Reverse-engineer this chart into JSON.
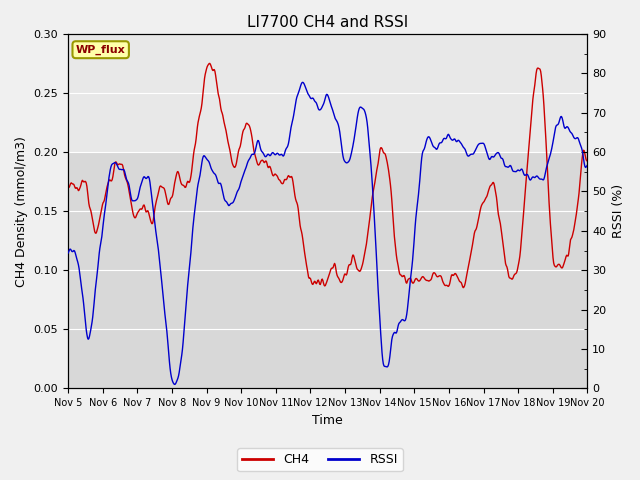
{
  "title": "LI7700 CH4 and RSSI",
  "xlabel": "Time",
  "ylabel_left": "CH4 Density (mmol/m3)",
  "ylabel_right": "RSSI (%)",
  "xlim": [
    0,
    15
  ],
  "ylim_left": [
    0,
    0.3
  ],
  "ylim_right": [
    0,
    90
  ],
  "yticks_left": [
    0.0,
    0.05,
    0.1,
    0.15,
    0.2,
    0.25,
    0.3
  ],
  "yticks_right": [
    0,
    10,
    20,
    30,
    40,
    50,
    60,
    70,
    80,
    90
  ],
  "xtick_labels": [
    "Nov 5",
    "Nov 6",
    "Nov 7",
    "Nov 8",
    "Nov 9",
    "Nov 10",
    "Nov 11",
    "Nov 12",
    "Nov 13",
    "Nov 14",
    "Nov 15",
    "Nov 16",
    "Nov 17",
    "Nov 18",
    "Nov 19",
    "Nov 20"
  ],
  "xtick_positions": [
    0,
    1,
    2,
    3,
    4,
    5,
    6,
    7,
    8,
    9,
    10,
    11,
    12,
    13,
    14,
    15
  ],
  "site_label": "WP_flux",
  "ch4_color": "#cc0000",
  "rssi_color": "#0000cc",
  "fig_bg_color": "#f0f0f0",
  "plot_bg_color": "#d8d8d8",
  "upper_bg_color": "#e8e8e8",
  "grid_color": "#ffffff",
  "legend_ch4": "CH4",
  "legend_rssi": "RSSI",
  "title_fontsize": 11,
  "axis_label_fontsize": 9,
  "tick_fontsize": 8,
  "legend_fontsize": 9,
  "linewidth": 1.0
}
